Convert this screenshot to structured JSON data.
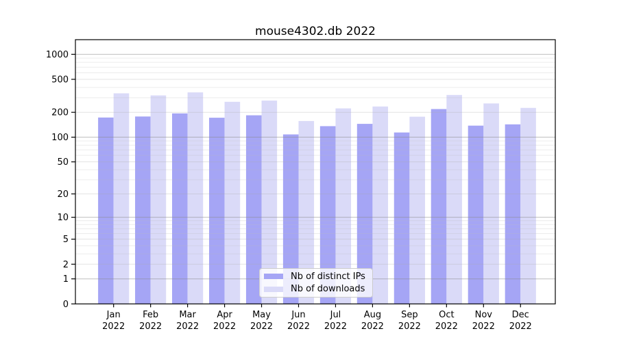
{
  "chart_data": {
    "type": "bar",
    "title": "mouse4302.db 2022",
    "categories": [
      "Jan",
      "Feb",
      "Mar",
      "Apr",
      "May",
      "Jun",
      "Jul",
      "Aug",
      "Sep",
      "Oct",
      "Nov",
      "Dec"
    ],
    "category_year": "2022",
    "series": [
      {
        "name": "Nb of distinct IPs",
        "color": "#a5a5f5",
        "values": [
          173,
          178,
          194,
          172,
          184,
          108,
          136,
          145,
          114,
          219,
          138,
          143
        ]
      },
      {
        "name": "Nb of downloads",
        "color": "#dadaf8",
        "values": [
          339,
          320,
          348,
          268,
          277,
          157,
          223,
          235,
          177,
          324,
          256,
          226
        ]
      }
    ],
    "yscale": "symlog (y proportional to log10(1+v))",
    "yticks": [
      0,
      1,
      2,
      5,
      10,
      20,
      50,
      100,
      200,
      500,
      1000
    ],
    "yminorticks": [
      3,
      4,
      6,
      7,
      8,
      9,
      30,
      40,
      60,
      70,
      80,
      90,
      300,
      400,
      600,
      700,
      800,
      900
    ],
    "ylim": [
      0,
      1500
    ],
    "xlabel": "",
    "ylabel": "",
    "grid": true,
    "legend_position": "bottom-center",
    "colors": {
      "spine": "#000000",
      "major_grid": "#c8c8c8",
      "labeled_grid": "#e0e0e0",
      "minor_grid": "#f0f0f0",
      "tick_text": "#000000"
    }
  }
}
